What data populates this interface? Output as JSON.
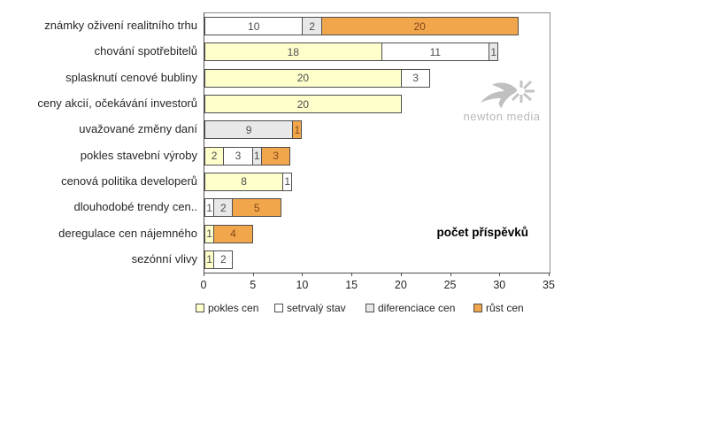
{
  "chart_data": {
    "type": "bar",
    "orientation": "horizontal",
    "stacked": true,
    "title": "",
    "xlabel": "počet příspěvků",
    "ylabel": "",
    "xlim": [
      0,
      35
    ],
    "x_ticks": [
      "0",
      "5",
      "10",
      "15",
      "20",
      "25",
      "30",
      "35"
    ],
    "grid": false,
    "legend_position": "bottom",
    "categories": [
      "známky oživení realitního trhu",
      "chování spotřebitelů",
      "splasknutí cenové bubliny",
      "ceny akcií, očekávání investorů",
      "uvažované změny daní",
      "pokles stavební výroby",
      "cenová politika developerů",
      "dlouhodobé trendy cen..",
      "deregulace cen nájemného",
      "sezónní vlivy"
    ],
    "series": [
      {
        "name": "pokles cen",
        "color": "#FFFFCC",
        "label_color": "#4d4d4d",
        "values": [
          0,
          18,
          20,
          20,
          0,
          2,
          8,
          0,
          1,
          1
        ]
      },
      {
        "name": "setrvalý stav",
        "color": "#FFFFFF",
        "label_color": "#4d4d4d",
        "values": [
          10,
          11,
          3,
          0,
          0,
          3,
          1,
          1,
          0,
          2
        ]
      },
      {
        "name": "diferenciace cen",
        "color": "#E8E8E8",
        "label_color": "#4d4d4d",
        "values": [
          2,
          1,
          0,
          0,
          9,
          1,
          0,
          2,
          0,
          0
        ]
      },
      {
        "name": "růst cen",
        "color": "#F2A64C",
        "label_color": "#83491a",
        "values": [
          20,
          0,
          0,
          0,
          1,
          3,
          0,
          5,
          4,
          0
        ]
      }
    ],
    "totals": [
      32,
      30,
      23,
      20,
      10,
      9,
      9,
      8,
      5,
      3
    ]
  },
  "watermark": {
    "text": "newton media"
  },
  "colors": {
    "segment_border": "#4f4f4f",
    "axis_dark": "#4d4d4d",
    "axis_light": "#8c8c8c",
    "category_text": "#262626",
    "watermark_gray": "#c0c0c0"
  }
}
